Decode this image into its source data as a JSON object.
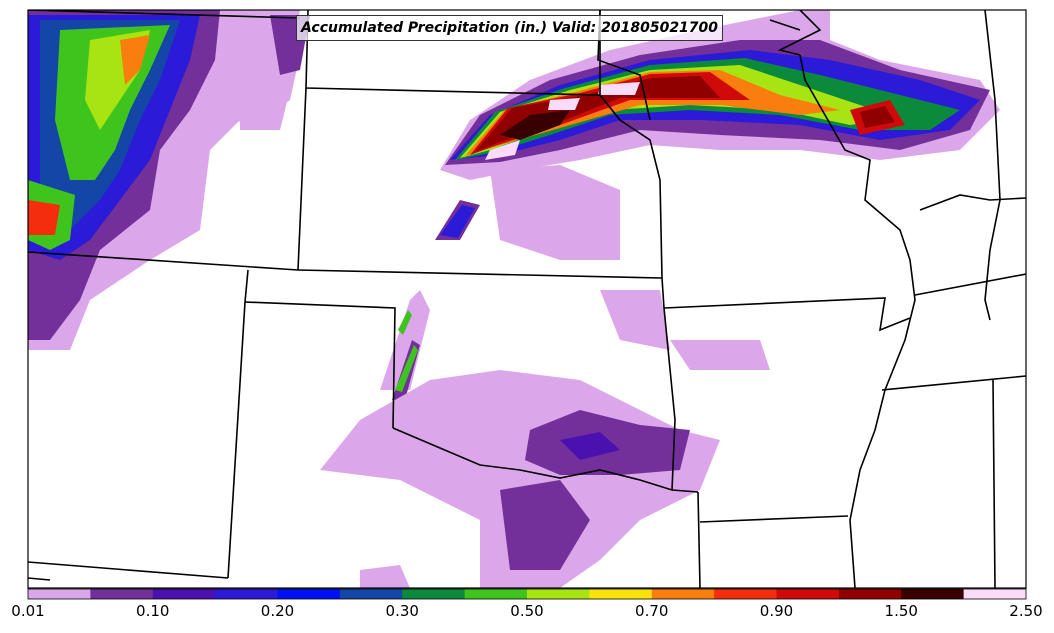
{
  "title": "Accumulated Precipitation (in.) Valid: 201805021700",
  "colorbar": {
    "colors": [
      "#dca6ea",
      "#73309b",
      "#4b10b0",
      "#2b1ad8",
      "#0010f8",
      "#1446a8",
      "#0c8a3c",
      "#3ec41c",
      "#a8e412",
      "#fae20a",
      "#fa7e0e",
      "#f42e0c",
      "#d00a0a",
      "#900000",
      "#380000",
      "#fadcfa"
    ],
    "tick_labels": [
      "0.01",
      "0.10",
      "0.20",
      "0.30",
      "0.50",
      "0.70",
      "0.90",
      "1.50",
      "2.50"
    ]
  }
}
